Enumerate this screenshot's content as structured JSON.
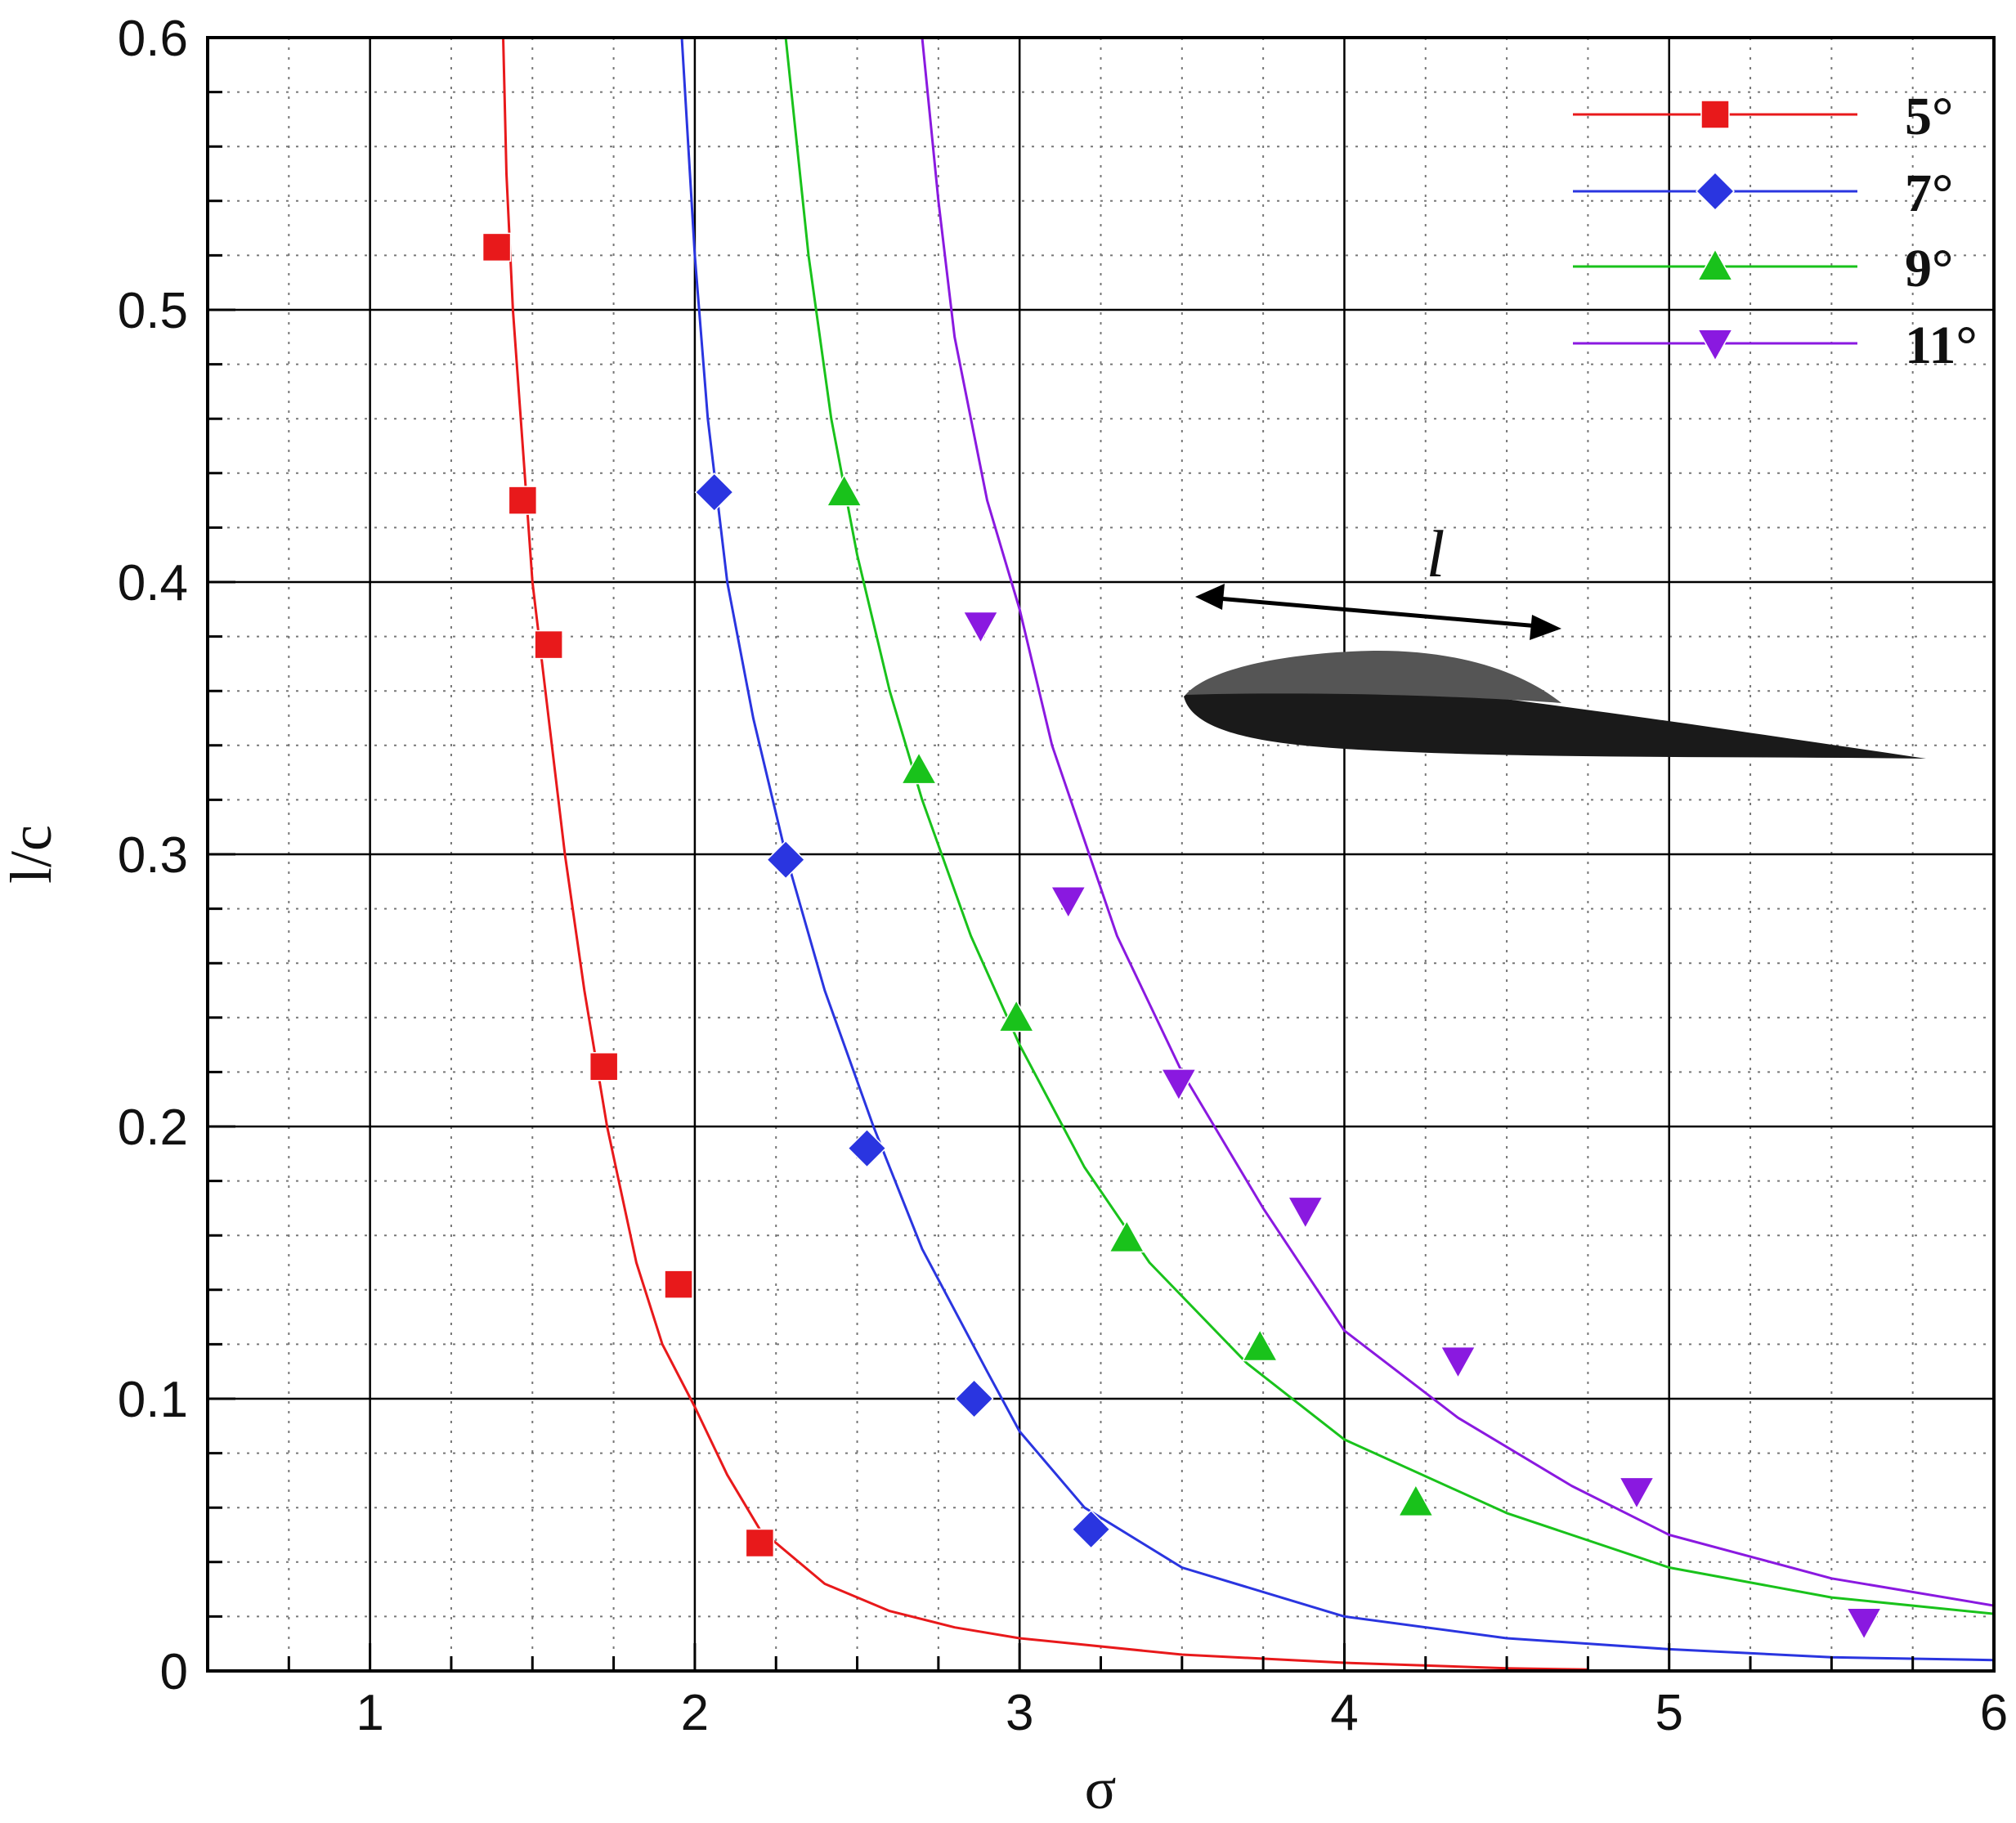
{
  "chart_data": {
    "type": "line",
    "xlabel": "σ",
    "ylabel": "l/c",
    "xlim": [
      0.5,
      6
    ],
    "ylim": [
      0,
      0.6
    ],
    "x_ticks": [
      1,
      2,
      3,
      4,
      5,
      6
    ],
    "y_ticks": [
      0,
      0.1,
      0.2,
      0.3,
      0.4,
      0.5,
      0.6
    ],
    "x_tick_labels": [
      "1",
      "2",
      "3",
      "4",
      "5",
      "6"
    ],
    "y_tick_labels": [
      "0",
      "0.1",
      "0.2",
      "0.3",
      "0.4",
      "0.5",
      "0.6"
    ],
    "grid": true,
    "legend_position": "top-right",
    "annotation": "l",
    "series": [
      {
        "name": "5°",
        "color": "#e8191b",
        "marker": "square",
        "points": [
          [
            1.39,
            0.523
          ],
          [
            1.47,
            0.43
          ],
          [
            1.55,
            0.377
          ],
          [
            1.72,
            0.222
          ],
          [
            1.95,
            0.142
          ],
          [
            2.2,
            0.047
          ]
        ],
        "curve": [
          [
            1.41,
            0.6
          ],
          [
            1.42,
            0.55
          ],
          [
            1.44,
            0.5
          ],
          [
            1.47,
            0.45
          ],
          [
            1.5,
            0.4
          ],
          [
            1.55,
            0.35
          ],
          [
            1.6,
            0.3
          ],
          [
            1.66,
            0.25
          ],
          [
            1.73,
            0.2
          ],
          [
            1.82,
            0.15
          ],
          [
            1.9,
            0.12
          ],
          [
            2.0,
            0.097
          ],
          [
            2.1,
            0.072
          ],
          [
            2.2,
            0.052
          ],
          [
            2.4,
            0.032
          ],
          [
            2.6,
            0.022
          ],
          [
            2.8,
            0.016
          ],
          [
            3.0,
            0.012
          ],
          [
            3.5,
            0.006
          ],
          [
            4.0,
            0.003
          ],
          [
            4.5,
            0.001
          ],
          [
            4.75,
            0.0005
          ]
        ]
      },
      {
        "name": "7°",
        "color": "#2a35e0",
        "marker": "diamond",
        "points": [
          [
            2.06,
            0.433
          ],
          [
            2.28,
            0.298
          ],
          [
            2.53,
            0.192
          ],
          [
            2.86,
            0.1
          ],
          [
            3.22,
            0.052
          ]
        ],
        "curve": [
          [
            1.96,
            0.6
          ],
          [
            2.0,
            0.52
          ],
          [
            2.04,
            0.46
          ],
          [
            2.1,
            0.4
          ],
          [
            2.18,
            0.35
          ],
          [
            2.28,
            0.3
          ],
          [
            2.4,
            0.25
          ],
          [
            2.55,
            0.2
          ],
          [
            2.7,
            0.155
          ],
          [
            2.9,
            0.11
          ],
          [
            3.0,
            0.088
          ],
          [
            3.2,
            0.06
          ],
          [
            3.5,
            0.038
          ],
          [
            4.0,
            0.02
          ],
          [
            4.5,
            0.012
          ],
          [
            5.0,
            0.008
          ],
          [
            5.5,
            0.005
          ],
          [
            6.0,
            0.004
          ]
        ]
      },
      {
        "name": "9°",
        "color": "#19c21b",
        "marker": "triangle-up",
        "points": [
          [
            2.46,
            0.433
          ],
          [
            2.69,
            0.331
          ],
          [
            2.99,
            0.24
          ],
          [
            3.33,
            0.159
          ],
          [
            3.74,
            0.119
          ],
          [
            4.22,
            0.062
          ]
        ],
        "curve": [
          [
            2.28,
            0.6
          ],
          [
            2.35,
            0.52
          ],
          [
            2.42,
            0.46
          ],
          [
            2.5,
            0.41
          ],
          [
            2.6,
            0.36
          ],
          [
            2.7,
            0.32
          ],
          [
            2.85,
            0.27
          ],
          [
            3.0,
            0.23
          ],
          [
            3.2,
            0.185
          ],
          [
            3.4,
            0.15
          ],
          [
            3.7,
            0.113
          ],
          [
            4.0,
            0.085
          ],
          [
            4.5,
            0.058
          ],
          [
            5.0,
            0.038
          ],
          [
            5.5,
            0.027
          ],
          [
            6.0,
            0.021
          ]
        ]
      },
      {
        "name": "11°",
        "color": "#8a19e0",
        "marker": "triangle-down",
        "points": [
          [
            2.88,
            0.384
          ],
          [
            3.15,
            0.283
          ],
          [
            3.49,
            0.216
          ],
          [
            3.88,
            0.169
          ],
          [
            4.35,
            0.114
          ],
          [
            4.9,
            0.066
          ],
          [
            5.6,
            0.018
          ]
        ],
        "curve": [
          [
            2.7,
            0.6
          ],
          [
            2.75,
            0.54
          ],
          [
            2.8,
            0.49
          ],
          [
            2.9,
            0.43
          ],
          [
            3.0,
            0.39
          ],
          [
            3.1,
            0.34
          ],
          [
            3.3,
            0.27
          ],
          [
            3.5,
            0.22
          ],
          [
            3.75,
            0.17
          ],
          [
            4.0,
            0.125
          ],
          [
            4.35,
            0.093
          ],
          [
            4.7,
            0.068
          ],
          [
            5.0,
            0.05
          ],
          [
            5.5,
            0.034
          ],
          [
            6.0,
            0.024
          ]
        ]
      }
    ]
  }
}
